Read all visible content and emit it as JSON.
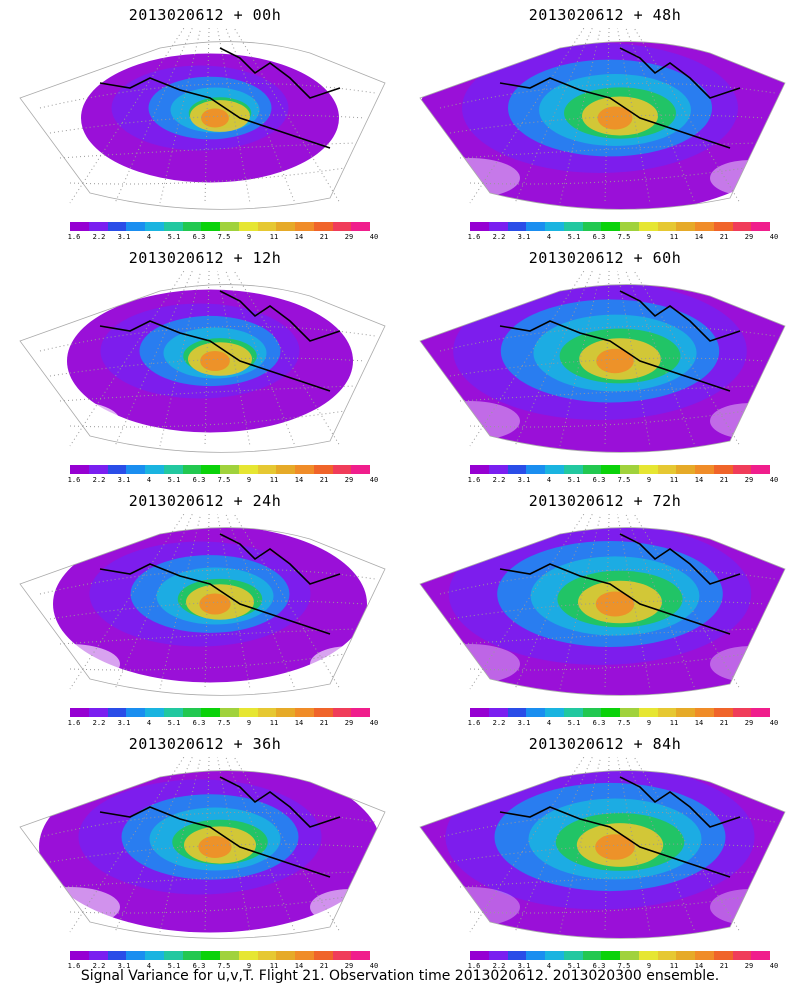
{
  "colorbar": {
    "colors": [
      "#9600d2",
      "#7a1ff0",
      "#2a4de8",
      "#1a8ef0",
      "#1ab4e0",
      "#22c8a0",
      "#22c850",
      "#0ad20a",
      "#a0d23c",
      "#e6e632",
      "#e6c832",
      "#e6aa28",
      "#f08c28",
      "#f0642a",
      "#f03c5a",
      "#f01e8c"
    ],
    "ticks": [
      "1.6",
      "2.2",
      "3.1",
      "4",
      "5.1",
      "6.3",
      "7.5",
      "9",
      "11",
      "14",
      "21",
      "29",
      "40"
    ]
  },
  "panels": [
    {
      "title": "2013020612 + 00h",
      "hot": 0.55,
      "spread": 0.35
    },
    {
      "title": "2013020612 + 48h",
      "hot": 0.75,
      "spread": 0.8
    },
    {
      "title": "2013020612 + 12h",
      "hot": 0.6,
      "spread": 0.45
    },
    {
      "title": "2013020612 + 60h",
      "hot": 0.82,
      "spread": 0.88
    },
    {
      "title": "2013020612 + 24h",
      "hot": 0.65,
      "spread": 0.55
    },
    {
      "title": "2013020612 + 72h",
      "hot": 0.85,
      "spread": 0.92
    },
    {
      "title": "2013020612 + 36h",
      "hot": 0.7,
      "spread": 0.65
    },
    {
      "title": "2013020612 + 84h",
      "hot": 0.88,
      "spread": 0.95
    }
  ],
  "caption": "Signal Variance for u,v,T. Flight 21. Observation time 2013020612. 2013020300 ensemble."
}
